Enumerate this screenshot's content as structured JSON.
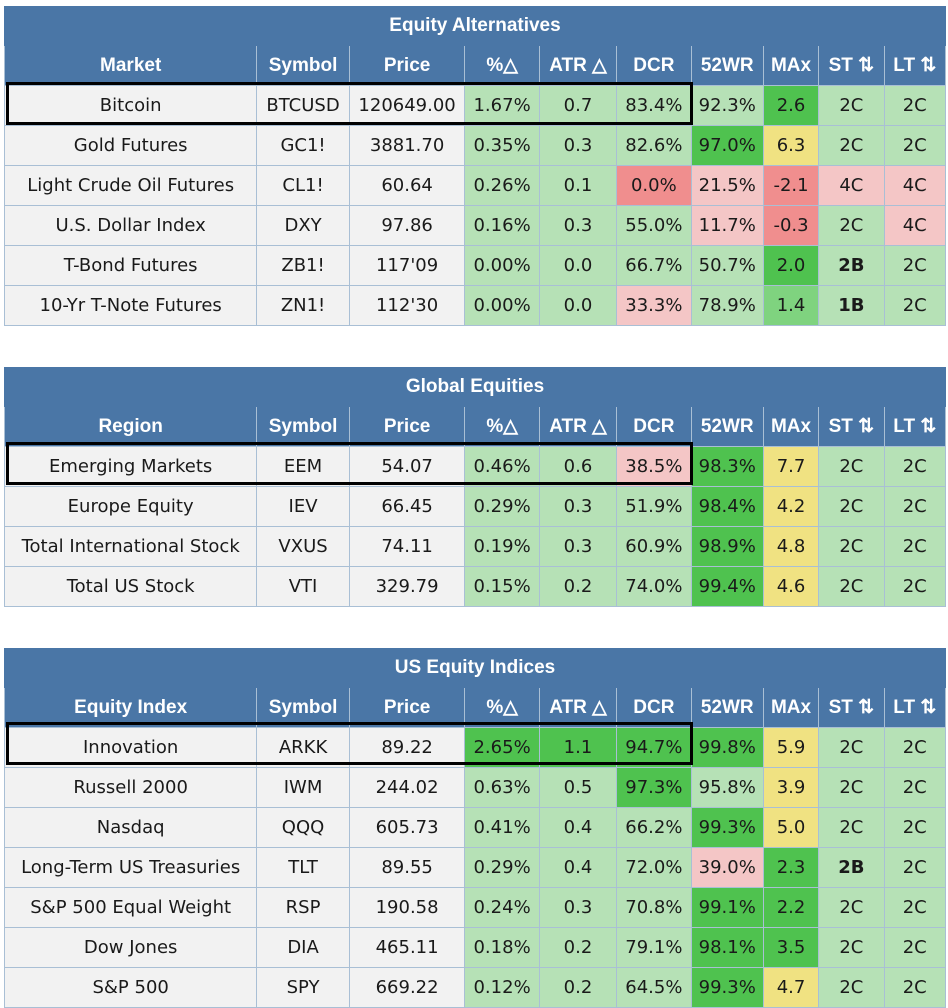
{
  "columns": [
    "Symbol",
    "Price",
    "%△",
    "ATR △",
    "DCR",
    "52WR",
    "MAx",
    "ST ⇅",
    "LT ⇅"
  ],
  "colors": {
    "header": "#4a76a6",
    "light_green": "#b6e1b6",
    "medium_green": "#7fd37f",
    "strong_green": "#4fc24f",
    "light_red": "#f4c6c6",
    "red": "#f08e8e",
    "yellow": "#f0e282",
    "highlight_border": "#000000"
  },
  "sections": [
    {
      "title": "Equity Alternatives",
      "first_header": "Market",
      "rows": [
        {
          "name": "Bitcoin",
          "symbol": "BTCUSD",
          "price": "120649.00",
          "pct": "1.67%",
          "atr": "0.7",
          "dcr": "83.4%",
          "wr52": "92.3%",
          "max": "2.6",
          "st": "2C",
          "lt": "2C",
          "highlighted": true
        },
        {
          "name": "Gold Futures",
          "symbol": "GC1!",
          "price": "3881.70",
          "pct": "0.35%",
          "atr": "0.3",
          "dcr": "82.6%",
          "wr52": "97.0%",
          "max": "6.3",
          "st": "2C",
          "lt": "2C",
          "highlighted": false
        },
        {
          "name": "Light Crude Oil Futures",
          "symbol": "CL1!",
          "price": "60.64",
          "pct": "0.26%",
          "atr": "0.1",
          "dcr": "0.0%",
          "wr52": "21.5%",
          "max": "-2.1",
          "st": "4C",
          "lt": "4C",
          "highlighted": false
        },
        {
          "name": "U.S. Dollar Index",
          "symbol": "DXY",
          "price": "97.86",
          "pct": "0.16%",
          "atr": "0.3",
          "dcr": "55.0%",
          "wr52": "11.7%",
          "max": "-0.3",
          "st": "2C",
          "lt": "4C",
          "highlighted": false
        },
        {
          "name": "T-Bond Futures",
          "symbol": "ZB1!",
          "price": "117'09",
          "pct": "0.00%",
          "atr": "0.0",
          "dcr": "66.7%",
          "wr52": "50.7%",
          "max": "2.0",
          "st": "2B",
          "lt": "2C",
          "highlighted": false
        },
        {
          "name": "10-Yr T-Note Futures",
          "symbol": "ZN1!",
          "price": "112'30",
          "pct": "0.00%",
          "atr": "0.0",
          "dcr": "33.3%",
          "wr52": "78.9%",
          "max": "1.4",
          "st": "1B",
          "lt": "2C",
          "highlighted": false
        }
      ]
    },
    {
      "title": "Global Equities",
      "first_header": "Region",
      "rows": [
        {
          "name": "Emerging Markets",
          "symbol": "EEM",
          "price": "54.07",
          "pct": "0.46%",
          "atr": "0.6",
          "dcr": "38.5%",
          "wr52": "98.3%",
          "max": "7.7",
          "st": "2C",
          "lt": "2C",
          "highlighted": true
        },
        {
          "name": "Europe Equity",
          "symbol": "IEV",
          "price": "66.45",
          "pct": "0.29%",
          "atr": "0.3",
          "dcr": "51.9%",
          "wr52": "98.4%",
          "max": "4.2",
          "st": "2C",
          "lt": "2C",
          "highlighted": false
        },
        {
          "name": "Total International Stock",
          "symbol": "VXUS",
          "price": "74.11",
          "pct": "0.19%",
          "atr": "0.3",
          "dcr": "60.9%",
          "wr52": "98.9%",
          "max": "4.8",
          "st": "2C",
          "lt": "2C",
          "highlighted": false
        },
        {
          "name": "Total US Stock",
          "symbol": "VTI",
          "price": "329.79",
          "pct": "0.15%",
          "atr": "0.2",
          "dcr": "74.0%",
          "wr52": "99.4%",
          "max": "4.6",
          "st": "2C",
          "lt": "2C",
          "highlighted": false
        }
      ]
    },
    {
      "title": "US Equity Indices",
      "first_header": "Equity Index",
      "rows": [
        {
          "name": "Innovation",
          "symbol": "ARKK",
          "price": "89.22",
          "pct": "2.65%",
          "atr": "1.1",
          "dcr": "94.7%",
          "wr52": "99.8%",
          "max": "5.9",
          "st": "2C",
          "lt": "2C",
          "highlighted": true
        },
        {
          "name": "Russell 2000",
          "symbol": "IWM",
          "price": "244.02",
          "pct": "0.63%",
          "atr": "0.5",
          "dcr": "97.3%",
          "wr52": "95.8%",
          "max": "3.9",
          "st": "2C",
          "lt": "2C",
          "highlighted": false
        },
        {
          "name": "Nasdaq",
          "symbol": "QQQ",
          "price": "605.73",
          "pct": "0.41%",
          "atr": "0.4",
          "dcr": "66.2%",
          "wr52": "99.3%",
          "max": "5.0",
          "st": "2C",
          "lt": "2C",
          "highlighted": false
        },
        {
          "name": "Long-Term US Treasuries",
          "symbol": "TLT",
          "price": "89.55",
          "pct": "0.29%",
          "atr": "0.4",
          "dcr": "72.0%",
          "wr52": "39.0%",
          "max": "2.3",
          "st": "2B",
          "lt": "2C",
          "highlighted": false
        },
        {
          "name": "S&P 500 Equal Weight",
          "symbol": "RSP",
          "price": "190.58",
          "pct": "0.24%",
          "atr": "0.3",
          "dcr": "70.8%",
          "wr52": "99.1%",
          "max": "2.2",
          "st": "2C",
          "lt": "2C",
          "highlighted": false
        },
        {
          "name": "Dow Jones",
          "symbol": "DIA",
          "price": "465.11",
          "pct": "0.18%",
          "atr": "0.2",
          "dcr": "79.1%",
          "wr52": "98.1%",
          "max": "3.5",
          "st": "2C",
          "lt": "2C",
          "highlighted": false
        },
        {
          "name": "S&P 500",
          "symbol": "SPY",
          "price": "669.22",
          "pct": "0.12%",
          "atr": "0.2",
          "dcr": "64.5%",
          "wr52": "99.3%",
          "max": "4.7",
          "st": "2C",
          "lt": "2C",
          "highlighted": false
        }
      ]
    }
  ]
}
